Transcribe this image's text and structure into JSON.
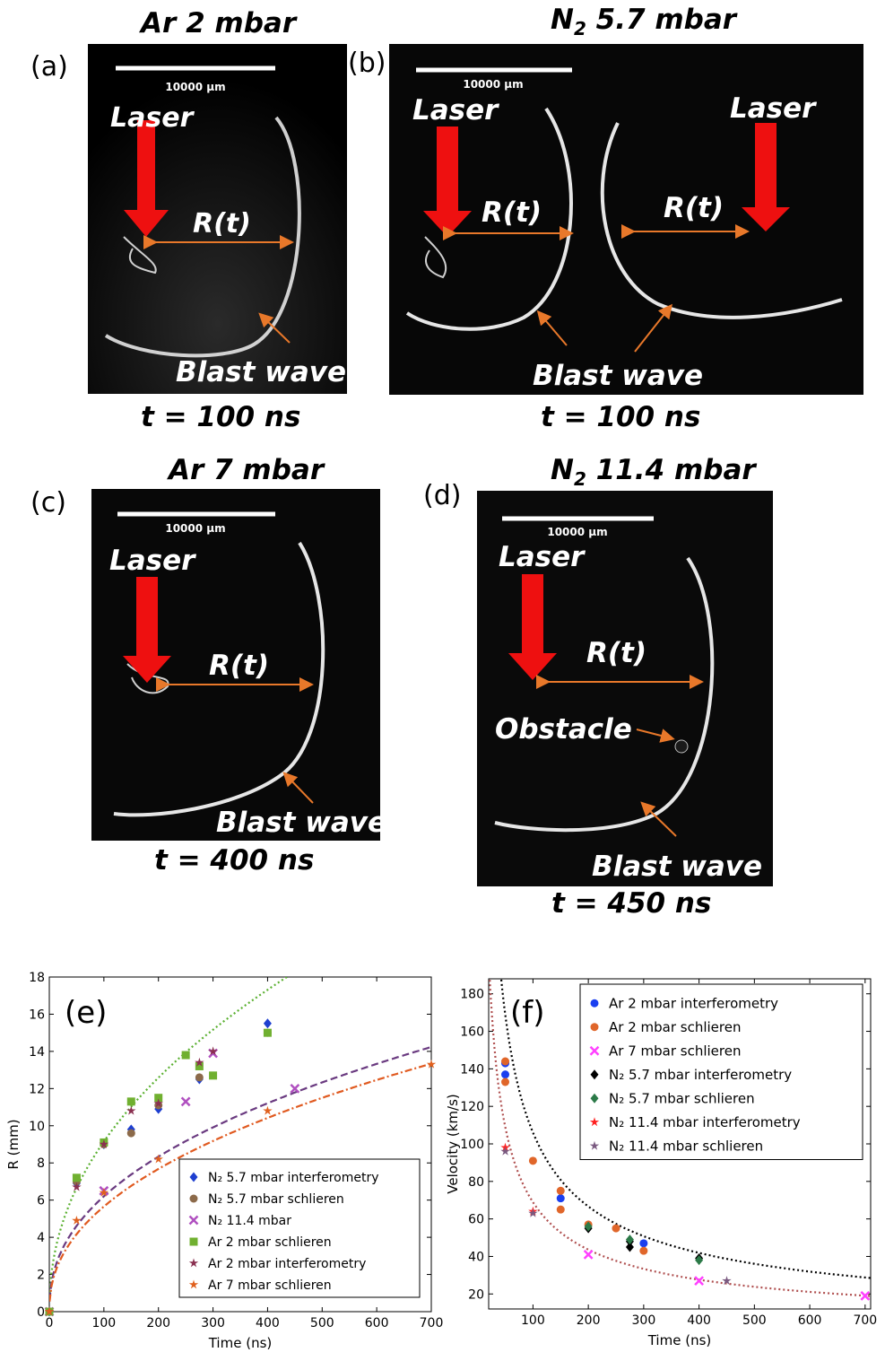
{
  "figure": {
    "panels": [
      {
        "id": "a",
        "label": "(a)",
        "title": "Ar 2 mbar",
        "title_sub": "",
        "scale_bar": "10000 µm",
        "laser": "Laser",
        "radius": "R(t)",
        "wave": "Blast wave",
        "time": "t = 100 ns"
      },
      {
        "id": "b",
        "label": "(b)",
        "title": "N",
        "title_sub": "2",
        "title_rest": " 5.7 mbar",
        "scale_bar": "10000 µm",
        "laser": "Laser",
        "laser2": "Laser",
        "radius": "R(t)",
        "radius2": "R(t)",
        "wave": "Blast wave",
        "time": "t = 100 ns"
      },
      {
        "id": "c",
        "label": "(c)",
        "title": "Ar 7 mbar",
        "scale_bar": "10000 µm",
        "laser": "Laser",
        "radius": "R(t)",
        "wave": "Blast wave",
        "time": "t = 400 ns"
      },
      {
        "id": "d",
        "label": "(d)",
        "title": "N",
        "title_sub": "2",
        "title_rest": " 11.4 mbar",
        "scale_bar": "10000 µm",
        "laser": "Laser",
        "radius": "R(t)",
        "obstacle": "Obstacle",
        "wave": "Blast wave",
        "time": "t = 450 ns"
      }
    ]
  },
  "chart_data": [
    {
      "panel_label": "(e)",
      "type": "scatter",
      "xlabel": "Time (ns)",
      "ylabel": "R (mm)",
      "xlim": [
        0,
        700
      ],
      "ylim": [
        0,
        18
      ],
      "xticks": [
        0,
        100,
        200,
        300,
        400,
        500,
        600,
        700
      ],
      "yticks": [
        0,
        2,
        4,
        6,
        8,
        10,
        12,
        14,
        16,
        18
      ],
      "legend_position": "bottom-right",
      "series": [
        {
          "name": "N₂ 5.7 mbar interferometry",
          "color": "#1e3fd0",
          "marker": "diamond",
          "points": [
            [
              0,
              0
            ],
            [
              50,
              6.9
            ],
            [
              100,
              9.0
            ],
            [
              150,
              9.8
            ],
            [
              200,
              10.9
            ],
            [
              275,
              12.5
            ],
            [
              400,
              15.5
            ]
          ]
        },
        {
          "name": "N₂ 5.7 mbar schlieren",
          "color": "#8c6a4a",
          "marker": "circle",
          "points": [
            [
              0,
              0
            ],
            [
              50,
              7.0
            ],
            [
              100,
              9.0
            ],
            [
              150,
              9.6
            ],
            [
              200,
              11.1
            ],
            [
              275,
              12.6
            ],
            [
              400,
              15.0
            ]
          ]
        },
        {
          "name": "N₂ 11.4 mbar",
          "color": "#b050c0",
          "marker": "x",
          "points": [
            [
              0,
              0
            ],
            [
              100,
              6.5
            ],
            [
              250,
              11.3
            ],
            [
              300,
              13.9
            ],
            [
              450,
              12.0
            ]
          ]
        },
        {
          "name": "Ar 2 mbar schlieren",
          "color": "#70b030",
          "marker": "square",
          "points": [
            [
              0,
              0
            ],
            [
              50,
              7.2
            ],
            [
              100,
              9.1
            ],
            [
              150,
              11.3
            ],
            [
              200,
              11.5
            ],
            [
              250,
              13.8
            ],
            [
              275,
              13.2
            ],
            [
              300,
              12.7
            ],
            [
              400,
              15.0
            ]
          ]
        },
        {
          "name": "Ar 2 mbar interferometry",
          "color": "#8a3050",
          "marker": "star",
          "points": [
            [
              0,
              0
            ],
            [
              50,
              6.7
            ],
            [
              100,
              9.0
            ],
            [
              150,
              10.8
            ],
            [
              200,
              11.2
            ],
            [
              275,
              13.4
            ],
            [
              300,
              14.0
            ]
          ]
        },
        {
          "name": "Ar 7 mbar schlieren",
          "color": "#e0601e",
          "marker": "star",
          "points": [
            [
              0,
              0
            ],
            [
              50,
              4.9
            ],
            [
              100,
              6.4
            ],
            [
              200,
              8.2
            ],
            [
              400,
              10.8
            ],
            [
              700,
              13.3
            ]
          ]
        }
      ],
      "fits": [
        {
          "color": "#5ab030",
          "style": "dotted",
          "a": 1.1,
          "b": 0.46
        },
        {
          "color": "#6a3a80",
          "style": "dashed",
          "a": 0.868,
          "b": 0.427
        },
        {
          "color": "#e05a20",
          "style": "dashdot",
          "a": 0.742,
          "b": 0.441
        }
      ]
    },
    {
      "panel_label": "(f)",
      "type": "scatter",
      "xlabel": "Time (ns)",
      "ylabel": "Velocity (km/s)",
      "xlim": [
        20,
        710
      ],
      "ylim": [
        12,
        188
      ],
      "xticks": [
        100,
        200,
        300,
        400,
        500,
        600,
        700
      ],
      "yticks": [
        20,
        40,
        60,
        80,
        100,
        120,
        140,
        160,
        180
      ],
      "legend_position": "top-right",
      "series": [
        {
          "name": "Ar 2 mbar interferometry",
          "color": "#1a3ff0",
          "marker": "circle",
          "points": [
            [
              50,
              137
            ],
            [
              50,
              143
            ],
            [
              150,
              71
            ],
            [
              300,
              47
            ]
          ]
        },
        {
          "name": "Ar 2 mbar schlieren",
          "color": "#e0662a",
          "marker": "circle",
          "points": [
            [
              50,
              133
            ],
            [
              50,
              144
            ],
            [
              100,
              91
            ],
            [
              150,
              75
            ],
            [
              150,
              65
            ],
            [
              200,
              57
            ],
            [
              250,
              55
            ],
            [
              300,
              43
            ]
          ]
        },
        {
          "name": "Ar 7 mbar schlieren",
          "color": "#ff40ff",
          "marker": "x",
          "points": [
            [
              200,
              41
            ],
            [
              400,
              27
            ],
            [
              700,
              19
            ]
          ]
        },
        {
          "name": "N₂ 5.7 mbar interferometry",
          "color": "#000000",
          "marker": "diamond",
          "points": [
            [
              200,
              55
            ],
            [
              275,
              48
            ],
            [
              275,
              45
            ],
            [
              400,
              39
            ]
          ]
        },
        {
          "name": "N₂ 5.7 mbar schlieren",
          "color": "#2c7a48",
          "marker": "diamond",
          "points": [
            [
              200,
              56
            ],
            [
              275,
              49
            ],
            [
              400,
              38
            ]
          ]
        },
        {
          "name": "N₂ 11.4 mbar interferometry",
          "color": "#ff2020",
          "marker": "star",
          "points": [
            [
              50,
              98
            ],
            [
              100,
              64
            ]
          ]
        },
        {
          "name": "N₂ 11.4 mbar schlieren",
          "color": "#7a5a80",
          "marker": "star",
          "points": [
            [
              50,
              96
            ],
            [
              100,
              63
            ],
            [
              450,
              27
            ]
          ]
        }
      ],
      "fits": [
        {
          "color": "#000000",
          "style": "dotted",
          "a": 2320,
          "b": -0.67
        },
        {
          "color": "#b05050",
          "style": "dotted",
          "a": 1440,
          "b": -0.66
        }
      ]
    }
  ]
}
